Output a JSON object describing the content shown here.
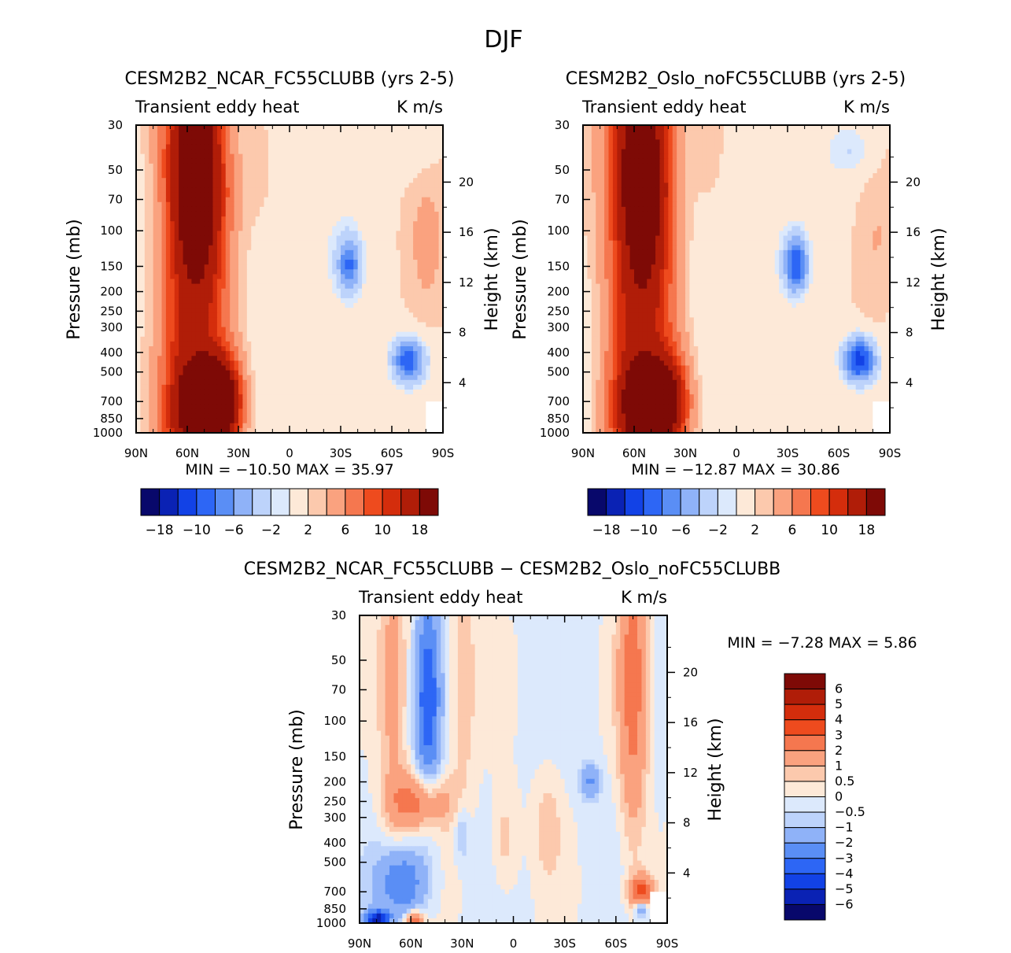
{
  "figure_title": "DJF",
  "colors": {
    "main_palette": [
      "#08086b",
      "#0a22b4",
      "#1242e6",
      "#2d66f5",
      "#5a8ef5",
      "#8fb2f8",
      "#bdd3fb",
      "#dce9fc",
      "#fde9d8",
      "#fcc9ad",
      "#faa27f",
      "#f5774f",
      "#ee4b1e",
      "#d42d0c",
      "#b01d08",
      "#7e0a06"
    ],
    "diff_palette": [
      "#08086b",
      "#0a22b4",
      "#1242e6",
      "#2d66f5",
      "#5a8ef5",
      "#8fb2f8",
      "#bdd3fb",
      "#dce9fc",
      "#fde9d8",
      "#fcc9ad",
      "#faa27f",
      "#f5774f",
      "#ee4b1e",
      "#d42d0c",
      "#b01d08",
      "#7e0a06"
    ]
  },
  "chart_data": [
    {
      "type": "heatmap",
      "title": "CESM2B2_NCAR_FC55CLUBB (yrs 2-5)",
      "subtitle_left": "Transient eddy heat",
      "subtitle_right": "K m/s",
      "xlabel": "",
      "ylabel": "Pressure (mb)",
      "ylabel_right": "Height (km)",
      "x_ticks": [
        "90N",
        "60N",
        "30N",
        "0",
        "30S",
        "60S",
        "90S"
      ],
      "x_values": [
        90,
        60,
        30,
        0,
        -30,
        -60,
        -90
      ],
      "y_ticks": [
        "30",
        "50",
        "70",
        "100",
        "150",
        "200",
        "250",
        "300",
        "400",
        "500",
        "700",
        "850",
        "1000"
      ],
      "y_values": [
        30,
        50,
        70,
        100,
        150,
        200,
        250,
        300,
        400,
        500,
        700,
        850,
        1000
      ],
      "height_ticks": [
        "4",
        "8",
        "12",
        "16",
        "20"
      ],
      "height_values": [
        4,
        8,
        12,
        16,
        20
      ],
      "stats_text": "MIN = −10.50   MAX =  35.97",
      "min": -10.5,
      "max": 35.97,
      "colorbar_levels": [
        -18,
        -14,
        -10,
        -8,
        -6,
        -4,
        -2,
        -1,
        1,
        2,
        4,
        6,
        8,
        10,
        14,
        18
      ],
      "colorbar_labels": [
        "−18",
        "−10",
        "−6",
        "−2",
        "2",
        "6",
        "10",
        "18"
      ],
      "field": {
        "base": 0.5,
        "noise_amp": 0.45,
        "wave_k": 0.35,
        "wave_phase": 0.3,
        "features": [
          {
            "lat": 65,
            "logp": 3.0,
            "slat": 9,
            "slp": 0.6,
            "amp": 7
          },
          {
            "lat": 55,
            "logp": 1.75,
            "slat": 10,
            "slp": 0.35,
            "amp": 12
          },
          {
            "lat": 50,
            "logp": 2.3,
            "slat": 11,
            "slp": 0.9,
            "amp": 7
          },
          {
            "lat": 60,
            "logp": 1.5,
            "slat": 12,
            "slp": 0.5,
            "amp": 6
          },
          {
            "lat": 48,
            "logp": 2.85,
            "slat": 9,
            "slp": 0.12,
            "amp": 30
          },
          {
            "lat": 38,
            "logp": 2.85,
            "slat": 8,
            "slp": 0.18,
            "amp": 8
          },
          {
            "lat": -35,
            "logp": 2.17,
            "slat": 5,
            "slp": 0.1,
            "amp": -8
          },
          {
            "lat": -70,
            "logp": 2.64,
            "slat": 7,
            "slp": 0.08,
            "amp": -10
          },
          {
            "lat": -70,
            "logp": 1.6,
            "slat": 10,
            "slp": 0.1,
            "amp": -1.5
          },
          {
            "lat": -5,
            "logp": 2.0,
            "slat": 25,
            "slp": 0.4,
            "amp": -1.2
          },
          {
            "lat": 15,
            "logp": 1.7,
            "slat": 8,
            "slp": 0.3,
            "amp": 1.0
          },
          {
            "lat": -80,
            "logp": 2.1,
            "slat": 10,
            "slp": 0.35,
            "amp": 1.5
          }
        ]
      }
    },
    {
      "type": "heatmap",
      "title": "CESM2B2_Oslo_noFC55CLUBB (yrs 2-5)",
      "subtitle_left": "Transient eddy heat",
      "subtitle_right": "K m/s",
      "xlabel": "",
      "ylabel": "Pressure (mb)",
      "ylabel_right": "Height (km)",
      "x_ticks": [
        "90N",
        "60N",
        "30N",
        "0",
        "30S",
        "60S",
        "90S"
      ],
      "x_values": [
        90,
        60,
        30,
        0,
        -30,
        -60,
        -90
      ],
      "y_ticks": [
        "30",
        "50",
        "70",
        "100",
        "150",
        "200",
        "250",
        "300",
        "400",
        "500",
        "700",
        "850",
        "1000"
      ],
      "y_values": [
        30,
        50,
        70,
        100,
        150,
        200,
        250,
        300,
        400,
        500,
        700,
        850,
        1000
      ],
      "height_ticks": [
        "4",
        "8",
        "12",
        "16",
        "20"
      ],
      "height_values": [
        4,
        8,
        12,
        16,
        20
      ],
      "stats_text": "MIN = −12.87   MAX =  30.86",
      "min": -12.87,
      "max": 30.86,
      "colorbar_levels": [
        -18,
        -14,
        -10,
        -8,
        -6,
        -4,
        -2,
        -1,
        1,
        2,
        4,
        6,
        8,
        10,
        14,
        18
      ],
      "colorbar_labels": [
        "−18",
        "−10",
        "−6",
        "−2",
        "2",
        "6",
        "10",
        "18"
      ],
      "field": {
        "base": 0.5,
        "noise_amp": 0.45,
        "wave_k": 0.35,
        "wave_phase": 1.3,
        "features": [
          {
            "lat": 65,
            "logp": 3.0,
            "slat": 9,
            "slp": 0.6,
            "amp": 7
          },
          {
            "lat": 55,
            "logp": 1.75,
            "slat": 10,
            "slp": 0.35,
            "amp": 11
          },
          {
            "lat": 50,
            "logp": 2.3,
            "slat": 11,
            "slp": 0.9,
            "amp": 7
          },
          {
            "lat": 62,
            "logp": 1.5,
            "slat": 12,
            "slp": 0.5,
            "amp": 7
          },
          {
            "lat": 50,
            "logp": 2.85,
            "slat": 9,
            "slp": 0.12,
            "amp": 26
          },
          {
            "lat": 38,
            "logp": 2.85,
            "slat": 8,
            "slp": 0.18,
            "amp": 7
          },
          {
            "lat": -35,
            "logp": 2.17,
            "slat": 5,
            "slp": 0.1,
            "amp": -10
          },
          {
            "lat": -72,
            "logp": 2.64,
            "slat": 7,
            "slp": 0.08,
            "amp": -12
          },
          {
            "lat": -68,
            "logp": 1.6,
            "slat": 10,
            "slp": 0.1,
            "amp": -2.5
          },
          {
            "lat": -5,
            "logp": 2.0,
            "slat": 25,
            "slp": 0.4,
            "amp": -1.2
          },
          {
            "lat": 15,
            "logp": 1.7,
            "slat": 8,
            "slp": 0.3,
            "amp": 1.0
          },
          {
            "lat": -82,
            "logp": 2.1,
            "slat": 10,
            "slp": 0.35,
            "amp": 1.5
          }
        ]
      }
    },
    {
      "type": "heatmap",
      "title": "CESM2B2_NCAR_FC55CLUBB − CESM2B2_Oslo_noFC55CLUBB",
      "subtitle_left": "Transient eddy heat",
      "subtitle_right": "K m/s",
      "xlabel": "",
      "ylabel": "Pressure (mb)",
      "ylabel_right": "Height (km)",
      "x_ticks": [
        "90N",
        "60N",
        "30N",
        "0",
        "30S",
        "60S",
        "90S"
      ],
      "x_values": [
        90,
        60,
        30,
        0,
        -30,
        -60,
        -90
      ],
      "y_ticks": [
        "30",
        "50",
        "70",
        "100",
        "150",
        "200",
        "250",
        "300",
        "400",
        "500",
        "700",
        "850",
        "1000"
      ],
      "y_values": [
        30,
        50,
        70,
        100,
        150,
        200,
        250,
        300,
        400,
        500,
        700,
        850,
        1000
      ],
      "height_ticks": [
        "4",
        "8",
        "12",
        "16",
        "20"
      ],
      "height_values": [
        4,
        8,
        12,
        16,
        20
      ],
      "stats_text": "MIN =   −7.28   MAX =     5.86",
      "min": -7.28,
      "max": 5.86,
      "colorbar_levels": [
        -6,
        -5,
        -4,
        -3,
        -2,
        -1,
        -0.5,
        0,
        0.5,
        1,
        2,
        3,
        4,
        5,
        6
      ],
      "colorbar_labels": [
        "6",
        "5",
        "4",
        "3",
        "2",
        "1",
        "0.5",
        "0",
        "−0.5",
        "−1",
        "−2",
        "−3",
        "−4",
        "−5",
        "−6"
      ],
      "field": {
        "base": -0.15,
        "noise_amp": 0.35,
        "wave_k": 0.5,
        "wave_phase": 0.7,
        "features": [
          {
            "lat": 50,
            "logp": 1.9,
            "slat": 5,
            "slp": 0.35,
            "amp": -3.5
          },
          {
            "lat": 70,
            "logp": 1.8,
            "slat": 6,
            "slp": 0.6,
            "amp": 1.3
          },
          {
            "lat": 30,
            "logp": 1.8,
            "slat": 6,
            "slp": 0.5,
            "amp": 1.0
          },
          {
            "lat": 55,
            "logp": 2.4,
            "slat": 12,
            "slp": 0.1,
            "amp": 2.8
          },
          {
            "lat": 65,
            "logp": 2.8,
            "slat": 10,
            "slp": 0.12,
            "amp": -3.0
          },
          {
            "lat": 58,
            "logp": 2.98,
            "slat": 4,
            "slp": 0.03,
            "amp": 3
          },
          {
            "lat": 80,
            "logp": 2.98,
            "slat": 5,
            "slp": 0.03,
            "amp": -5
          },
          {
            "lat": 30,
            "logp": 2.55,
            "slat": 3,
            "slp": 0.1,
            "amp": -1.2
          },
          {
            "lat": -70,
            "logp": 1.8,
            "slat": 6,
            "slp": 0.6,
            "amp": 2.5
          },
          {
            "lat": -45,
            "logp": 2.3,
            "slat": 4,
            "slp": 0.06,
            "amp": -2.0
          },
          {
            "lat": -75,
            "logp": 2.85,
            "slat": 5,
            "slp": 0.06,
            "amp": 3.5
          },
          {
            "lat": -75,
            "logp": 2.93,
            "slat": 3,
            "slp": 0.03,
            "amp": -3
          },
          {
            "lat": 5,
            "logp": 2.6,
            "slat": 6,
            "slp": 0.2,
            "amp": 1.0
          },
          {
            "lat": -20,
            "logp": 2.5,
            "slat": 6,
            "slp": 0.2,
            "amp": 0.8
          }
        ]
      }
    }
  ]
}
